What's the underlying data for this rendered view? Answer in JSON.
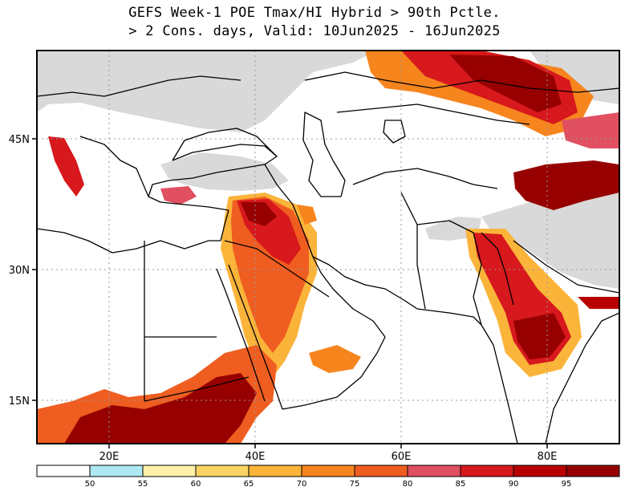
{
  "title": {
    "line1": "GEFS Week-1 POE Tmax/HI Hybrid > 90th Pctle.",
    "line2": "> 2 Cons. days, Valid: 10Jun2025 - 16Jun2025"
  },
  "axes": {
    "x_ticks": [
      "20E",
      "40E",
      "60E",
      "80E"
    ],
    "y_ticks": [
      "45N",
      "30N",
      "15N"
    ]
  },
  "colorbar": {
    "levels": [
      "50",
      "55",
      "60",
      "65",
      "70",
      "75",
      "80",
      "85",
      "90",
      "95"
    ],
    "colors": [
      "#ffffff",
      "#aee8f0",
      "#fff2a8",
      "#fcd463",
      "#fbb43a",
      "#f7851e",
      "#ef5d20",
      "#e05060",
      "#d7181c",
      "#b80000",
      "#960000"
    ]
  },
  "colors": {
    "land": "#ffffff",
    "no_data_gray": "#d9d9d9",
    "border": "#000000",
    "grid": "#999999"
  },
  "map_layers": {
    "gray_regions": [
      "north-eurasia",
      "anatolia-caucasus",
      "tibet-himalaya",
      "hindu-kush"
    ],
    "hot_regions": [
      "iraq-arabia",
      "sahel-sudan",
      "india-deccan",
      "central-asia-north",
      "west-china",
      "italy",
      "turkey-south",
      "persian-gulf-coast"
    ]
  }
}
